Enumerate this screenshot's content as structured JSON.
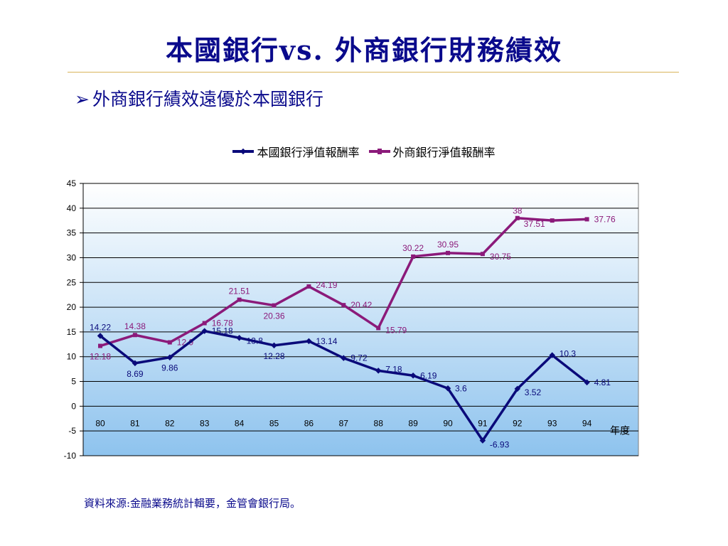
{
  "slide": {
    "title": "本國銀行vs. 外商銀行財務績效",
    "bullet": "外商銀行績效遠優於本國銀行",
    "source": "資料來源:金融業務統計輯要，金管會銀行局。"
  },
  "chart_data": {
    "type": "line",
    "categories": [
      "80",
      "81",
      "82",
      "83",
      "84",
      "85",
      "86",
      "87",
      "88",
      "89",
      "90",
      "91",
      "92",
      "93",
      "94"
    ],
    "xlabel": "年度",
    "ylabel": "",
    "ylim": [
      -10,
      45
    ],
    "yticks": [
      45,
      40,
      35,
      30,
      25,
      20,
      15,
      10,
      5,
      0,
      -5,
      -10
    ],
    "grid": true,
    "legend_position": "top",
    "series": [
      {
        "name": "本國銀行淨值報酬率",
        "color": "#0a0a7a",
        "values": [
          14.22,
          8.69,
          9.86,
          15.18,
          13.8,
          12.28,
          13.14,
          9.72,
          7.18,
          6.19,
          3.6,
          -6.93,
          3.52,
          10.3,
          4.81
        ],
        "labels": [
          "14.22",
          "8.69",
          "9.86",
          "15.18",
          "13.8",
          "12.28",
          "13.14",
          "9.72",
          "7.18",
          "6.19",
          "3.6",
          "-6.93",
          "3.52",
          "10.3",
          "4.81"
        ]
      },
      {
        "name": "外商銀行淨值報酬率",
        "color": "#8b1a7a",
        "values": [
          12.18,
          14.38,
          12.9,
          16.78,
          21.51,
          20.36,
          24.19,
          20.42,
          15.79,
          30.22,
          30.95,
          30.75,
          38,
          37.51,
          37.76
        ],
        "labels": [
          "12.18",
          "14.38",
          "12.9",
          "16.78",
          "21.51",
          "20.36",
          "24.19",
          "20.42",
          "15.79",
          "30.22",
          "30.95",
          "30.75",
          "38",
          "37.51",
          "37.76"
        ]
      }
    ]
  }
}
